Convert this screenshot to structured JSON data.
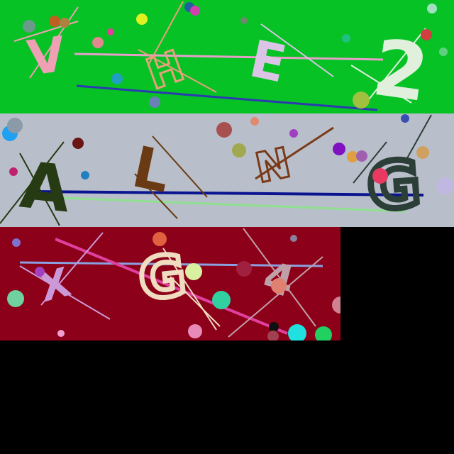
{
  "canvas": {
    "background": "#000000"
  },
  "tiles": [
    {
      "name": "captcha-tile-1",
      "background": "#06c225",
      "glyphs": [
        {
          "name": "glyph-v",
          "char": "V",
          "color": "#f0a0b4"
        },
        {
          "name": "glyph-h",
          "char": "H",
          "color": "#e6a07c"
        },
        {
          "name": "glyph-e",
          "char": "E",
          "color": "#dcc4e6"
        },
        {
          "name": "glyph-2",
          "char": "2",
          "color": "#e0f0dc"
        }
      ]
    },
    {
      "name": "captcha-tile-2",
      "background": "#b9bfca",
      "glyphs": [
        {
          "name": "glyph-a",
          "char": "A",
          "color": "#263a14"
        },
        {
          "name": "glyph-l",
          "char": "L",
          "color": "#6a3a14"
        },
        {
          "name": "glyph-n",
          "char": "N",
          "color": "#7a3a18"
        },
        {
          "name": "glyph-g",
          "char": "G",
          "color": "#2c3e38"
        }
      ]
    },
    {
      "name": "captcha-tile-3",
      "background": "#8c0019",
      "glyphs": [
        {
          "name": "glyph-x",
          "char": "X",
          "color": "#cc99d8"
        },
        {
          "name": "glyph-g2",
          "char": "G",
          "color": "#f0dcc0"
        },
        {
          "name": "glyph-4",
          "char": "4",
          "color": "#c0a0a8"
        }
      ]
    }
  ]
}
